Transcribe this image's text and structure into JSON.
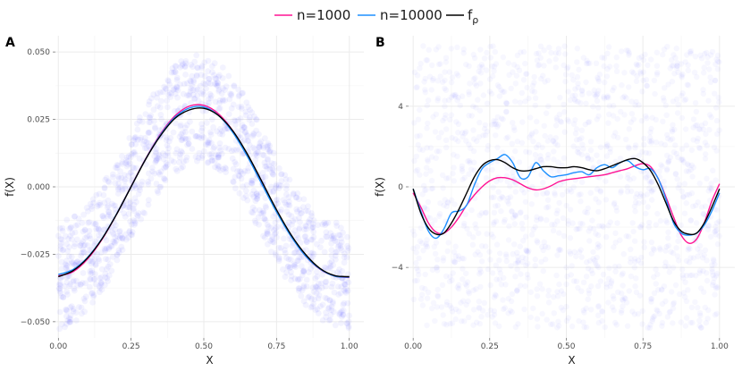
{
  "legend": {
    "items": [
      {
        "label": "n=1000",
        "color": "#ff1493"
      },
      {
        "label": "n=10000",
        "color": "#1e90ff"
      },
      {
        "label": "f",
        "sub": "ρ",
        "color": "#000000"
      }
    ]
  },
  "colors": {
    "points": "#3b3bff",
    "grid": "#ebebeb"
  },
  "chart_data": [
    {
      "type": "line",
      "panel": "A",
      "xlabel": "X",
      "ylabel": "f(X)",
      "xlim": [
        -0.01,
        1.05
      ],
      "ylim": [
        -0.056,
        0.056
      ],
      "x_ticks": [
        0.0,
        0.25,
        0.5,
        0.75,
        1.0
      ],
      "x_tick_labels": [
        "0.00",
        "0.25",
        "0.50",
        "0.75",
        "1.00"
      ],
      "y_ticks": [
        -0.05,
        -0.025,
        0.0,
        0.025,
        0.05
      ],
      "y_tick_labels": [
        "−0.050",
        "−0.025",
        "0.000",
        "0.025",
        "0.050"
      ],
      "grid": true,
      "scatter_band": {
        "center": "f_rho",
        "half_width": 0.02,
        "x_range": [
          0,
          1
        ]
      },
      "series": [
        {
          "name": "n=1000",
          "color": "#ff1493",
          "x": [
            0,
            0.05,
            0.1,
            0.15,
            0.2,
            0.25,
            0.3,
            0.35,
            0.4,
            0.45,
            0.5,
            0.55,
            0.6,
            0.65,
            0.7,
            0.75,
            0.8,
            0.85,
            0.9,
            0.95,
            1.0
          ],
          "y": [
            -0.033,
            -0.0315,
            -0.0268,
            -0.0195,
            -0.0102,
            0.0002,
            0.0104,
            0.0194,
            0.0262,
            0.0299,
            0.0302,
            0.0271,
            0.0207,
            0.0118,
            0.0015,
            -0.0089,
            -0.0182,
            -0.0257,
            -0.0306,
            -0.0331,
            -0.0336
          ]
        },
        {
          "name": "n=10000",
          "color": "#1e90ff",
          "x": [
            0,
            0.05,
            0.1,
            0.15,
            0.2,
            0.25,
            0.3,
            0.35,
            0.4,
            0.45,
            0.5,
            0.55,
            0.6,
            0.65,
            0.7,
            0.75,
            0.8,
            0.85,
            0.9,
            0.95,
            1.0
          ],
          "y": [
            -0.0325,
            -0.0307,
            -0.0262,
            -0.0192,
            -0.0101,
            0.0001,
            0.0103,
            0.0191,
            0.0257,
            0.0292,
            0.0296,
            0.0265,
            0.0201,
            0.0112,
            0.0009,
            -0.0093,
            -0.0184,
            -0.0257,
            -0.0305,
            -0.0331,
            -0.0335
          ]
        },
        {
          "name": "f_ρ",
          "color": "#000000",
          "x": [
            0,
            0.05,
            0.1,
            0.15,
            0.2,
            0.25,
            0.3,
            0.35,
            0.4,
            0.45,
            0.5,
            0.55,
            0.6,
            0.65,
            0.7,
            0.75,
            0.8,
            0.85,
            0.9,
            0.95,
            1.0
          ],
          "y": [
            -0.0333,
            -0.0311,
            -0.0264,
            -0.0193,
            -0.0102,
            0.0,
            0.0102,
            0.0188,
            0.0253,
            0.0285,
            0.0291,
            0.0265,
            0.0207,
            0.0121,
            0.0019,
            -0.0085,
            -0.0178,
            -0.0251,
            -0.0303,
            -0.0329,
            -0.0333
          ]
        }
      ]
    },
    {
      "type": "line",
      "panel": "B",
      "xlabel": "X",
      "ylabel": "f(X)",
      "xlim": [
        -0.015,
        1.05
      ],
      "ylim": [
        -7.5,
        7.5
      ],
      "x_ticks": [
        0.0,
        0.25,
        0.5,
        0.75,
        1.0
      ],
      "x_tick_labels": [
        "0.00",
        "0.25",
        "0.50",
        "0.75",
        "1.00"
      ],
      "y_ticks": [
        -4,
        0,
        4
      ],
      "y_tick_labels": [
        "−4",
        "0",
        "4"
      ],
      "grid": true,
      "scatter_band": {
        "center": "zero",
        "half_width": 7,
        "x_range": [
          0,
          1
        ]
      },
      "series": [
        {
          "name": "n=1000",
          "color": "#ff1493",
          "x": [
            0,
            0.025,
            0.05,
            0.075,
            0.1,
            0.125,
            0.15,
            0.175,
            0.2,
            0.225,
            0.25,
            0.275,
            0.3,
            0.325,
            0.35,
            0.375,
            0.4,
            0.425,
            0.45,
            0.475,
            0.5,
            0.525,
            0.55,
            0.575,
            0.6,
            0.625,
            0.65,
            0.675,
            0.7,
            0.725,
            0.75,
            0.775,
            0.8,
            0.825,
            0.85,
            0.875,
            0.9,
            0.925,
            0.95,
            0.975,
            1.0
          ],
          "y": [
            -0.3,
            -1.0,
            -1.8,
            -2.25,
            -2.3,
            -2.0,
            -1.5,
            -0.9,
            -0.4,
            0.0,
            0.3,
            0.45,
            0.45,
            0.35,
            0.15,
            -0.05,
            -0.15,
            -0.1,
            0.05,
            0.25,
            0.35,
            0.4,
            0.45,
            0.5,
            0.55,
            0.6,
            0.7,
            0.8,
            0.9,
            1.05,
            1.15,
            1.0,
            0.4,
            -0.5,
            -1.5,
            -2.4,
            -2.8,
            -2.6,
            -1.8,
            -0.7,
            0.15
          ]
        },
        {
          "name": "n=10000",
          "color": "#1e90ff",
          "x": [
            0,
            0.025,
            0.05,
            0.075,
            0.1,
            0.125,
            0.15,
            0.175,
            0.2,
            0.225,
            0.25,
            0.275,
            0.3,
            0.325,
            0.35,
            0.375,
            0.4,
            0.425,
            0.45,
            0.475,
            0.5,
            0.525,
            0.55,
            0.575,
            0.6,
            0.625,
            0.65,
            0.675,
            0.7,
            0.725,
            0.75,
            0.775,
            0.8,
            0.825,
            0.85,
            0.875,
            0.9,
            0.925,
            0.95,
            0.975,
            1.0
          ],
          "y": [
            -0.1,
            -1.2,
            -2.2,
            -2.55,
            -2.1,
            -1.3,
            -1.2,
            -0.9,
            0.1,
            0.9,
            1.2,
            1.4,
            1.6,
            1.2,
            0.45,
            0.5,
            1.2,
            0.8,
            0.5,
            0.55,
            0.6,
            0.7,
            0.75,
            0.6,
            0.95,
            1.1,
            0.95,
            1.2,
            1.3,
            1.0,
            0.85,
            0.9,
            0.4,
            -0.6,
            -1.8,
            -2.3,
            -2.4,
            -2.3,
            -1.9,
            -1.2,
            -0.3
          ]
        },
        {
          "name": "f_ρ",
          "color": "#000000",
          "x": [
            0,
            0.025,
            0.05,
            0.075,
            0.1,
            0.125,
            0.15,
            0.175,
            0.2,
            0.225,
            0.25,
            0.275,
            0.3,
            0.325,
            0.35,
            0.375,
            0.4,
            0.425,
            0.45,
            0.475,
            0.5,
            0.525,
            0.55,
            0.575,
            0.6,
            0.625,
            0.65,
            0.675,
            0.7,
            0.725,
            0.75,
            0.775,
            0.8,
            0.825,
            0.85,
            0.875,
            0.9,
            0.925,
            0.95,
            0.975,
            1.0
          ],
          "y": [
            -0.1,
            -1.3,
            -2.05,
            -2.35,
            -2.3,
            -1.8,
            -1.1,
            -0.3,
            0.5,
            1.05,
            1.3,
            1.35,
            1.2,
            0.95,
            0.8,
            0.8,
            0.9,
            1.0,
            1.0,
            0.95,
            0.95,
            1.0,
            0.95,
            0.85,
            0.8,
            0.9,
            1.05,
            1.2,
            1.35,
            1.4,
            1.2,
            0.8,
            0.1,
            -0.8,
            -1.7,
            -2.2,
            -2.35,
            -2.3,
            -1.8,
            -1.0,
            -0.1
          ]
        }
      ]
    }
  ]
}
